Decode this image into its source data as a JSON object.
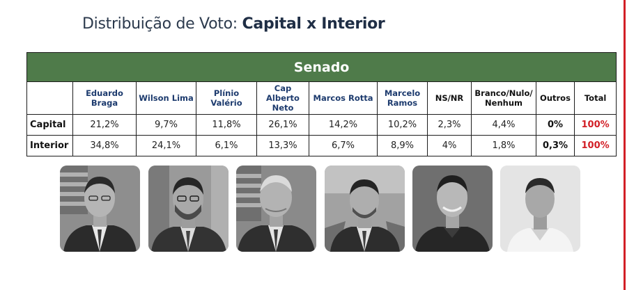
{
  "title": {
    "prefix": "Distribuição de Voto: ",
    "emphasis": "Capital x Interior"
  },
  "table": {
    "section": "Senado",
    "columns": [
      "Eduardo Braga",
      "Wilson Lima",
      "Plínio Valério",
      "Cap Alberto Neto",
      "Marcos Rotta",
      "Marcelo Ramos",
      "NS/NR",
      "Branco/Nulo/ Nenhum",
      "Outros",
      "Total"
    ],
    "rows": [
      {
        "label": "Capital",
        "values": [
          "21,2%",
          "9,7%",
          "11,8%",
          "26,1%",
          "14,2%",
          "10,2%",
          "2,3%",
          "4,4%",
          "0%",
          "100%"
        ]
      },
      {
        "label": "Interior",
        "values": [
          "34,8%",
          "24,1%",
          "6,1%",
          "13,3%",
          "6,7%",
          "8,9%",
          "4%",
          "1,8%",
          "0,3%",
          "100%"
        ]
      }
    ]
  },
  "colors": {
    "header_green": "#4f7b4a",
    "accent_red": "#d21f26",
    "title_navy": "#1f2e45",
    "column_blue": "#1d3b6e"
  },
  "photos": [
    {
      "subject": "candidate-photo-1",
      "background": "flag"
    },
    {
      "subject": "candidate-photo-2",
      "background": "office"
    },
    {
      "subject": "candidate-photo-3",
      "background": "flag"
    },
    {
      "subject": "candidate-photo-4",
      "background": "flag"
    },
    {
      "subject": "candidate-photo-5",
      "background": "plain-dark"
    },
    {
      "subject": "candidate-photo-6",
      "background": "plain-light"
    }
  ]
}
